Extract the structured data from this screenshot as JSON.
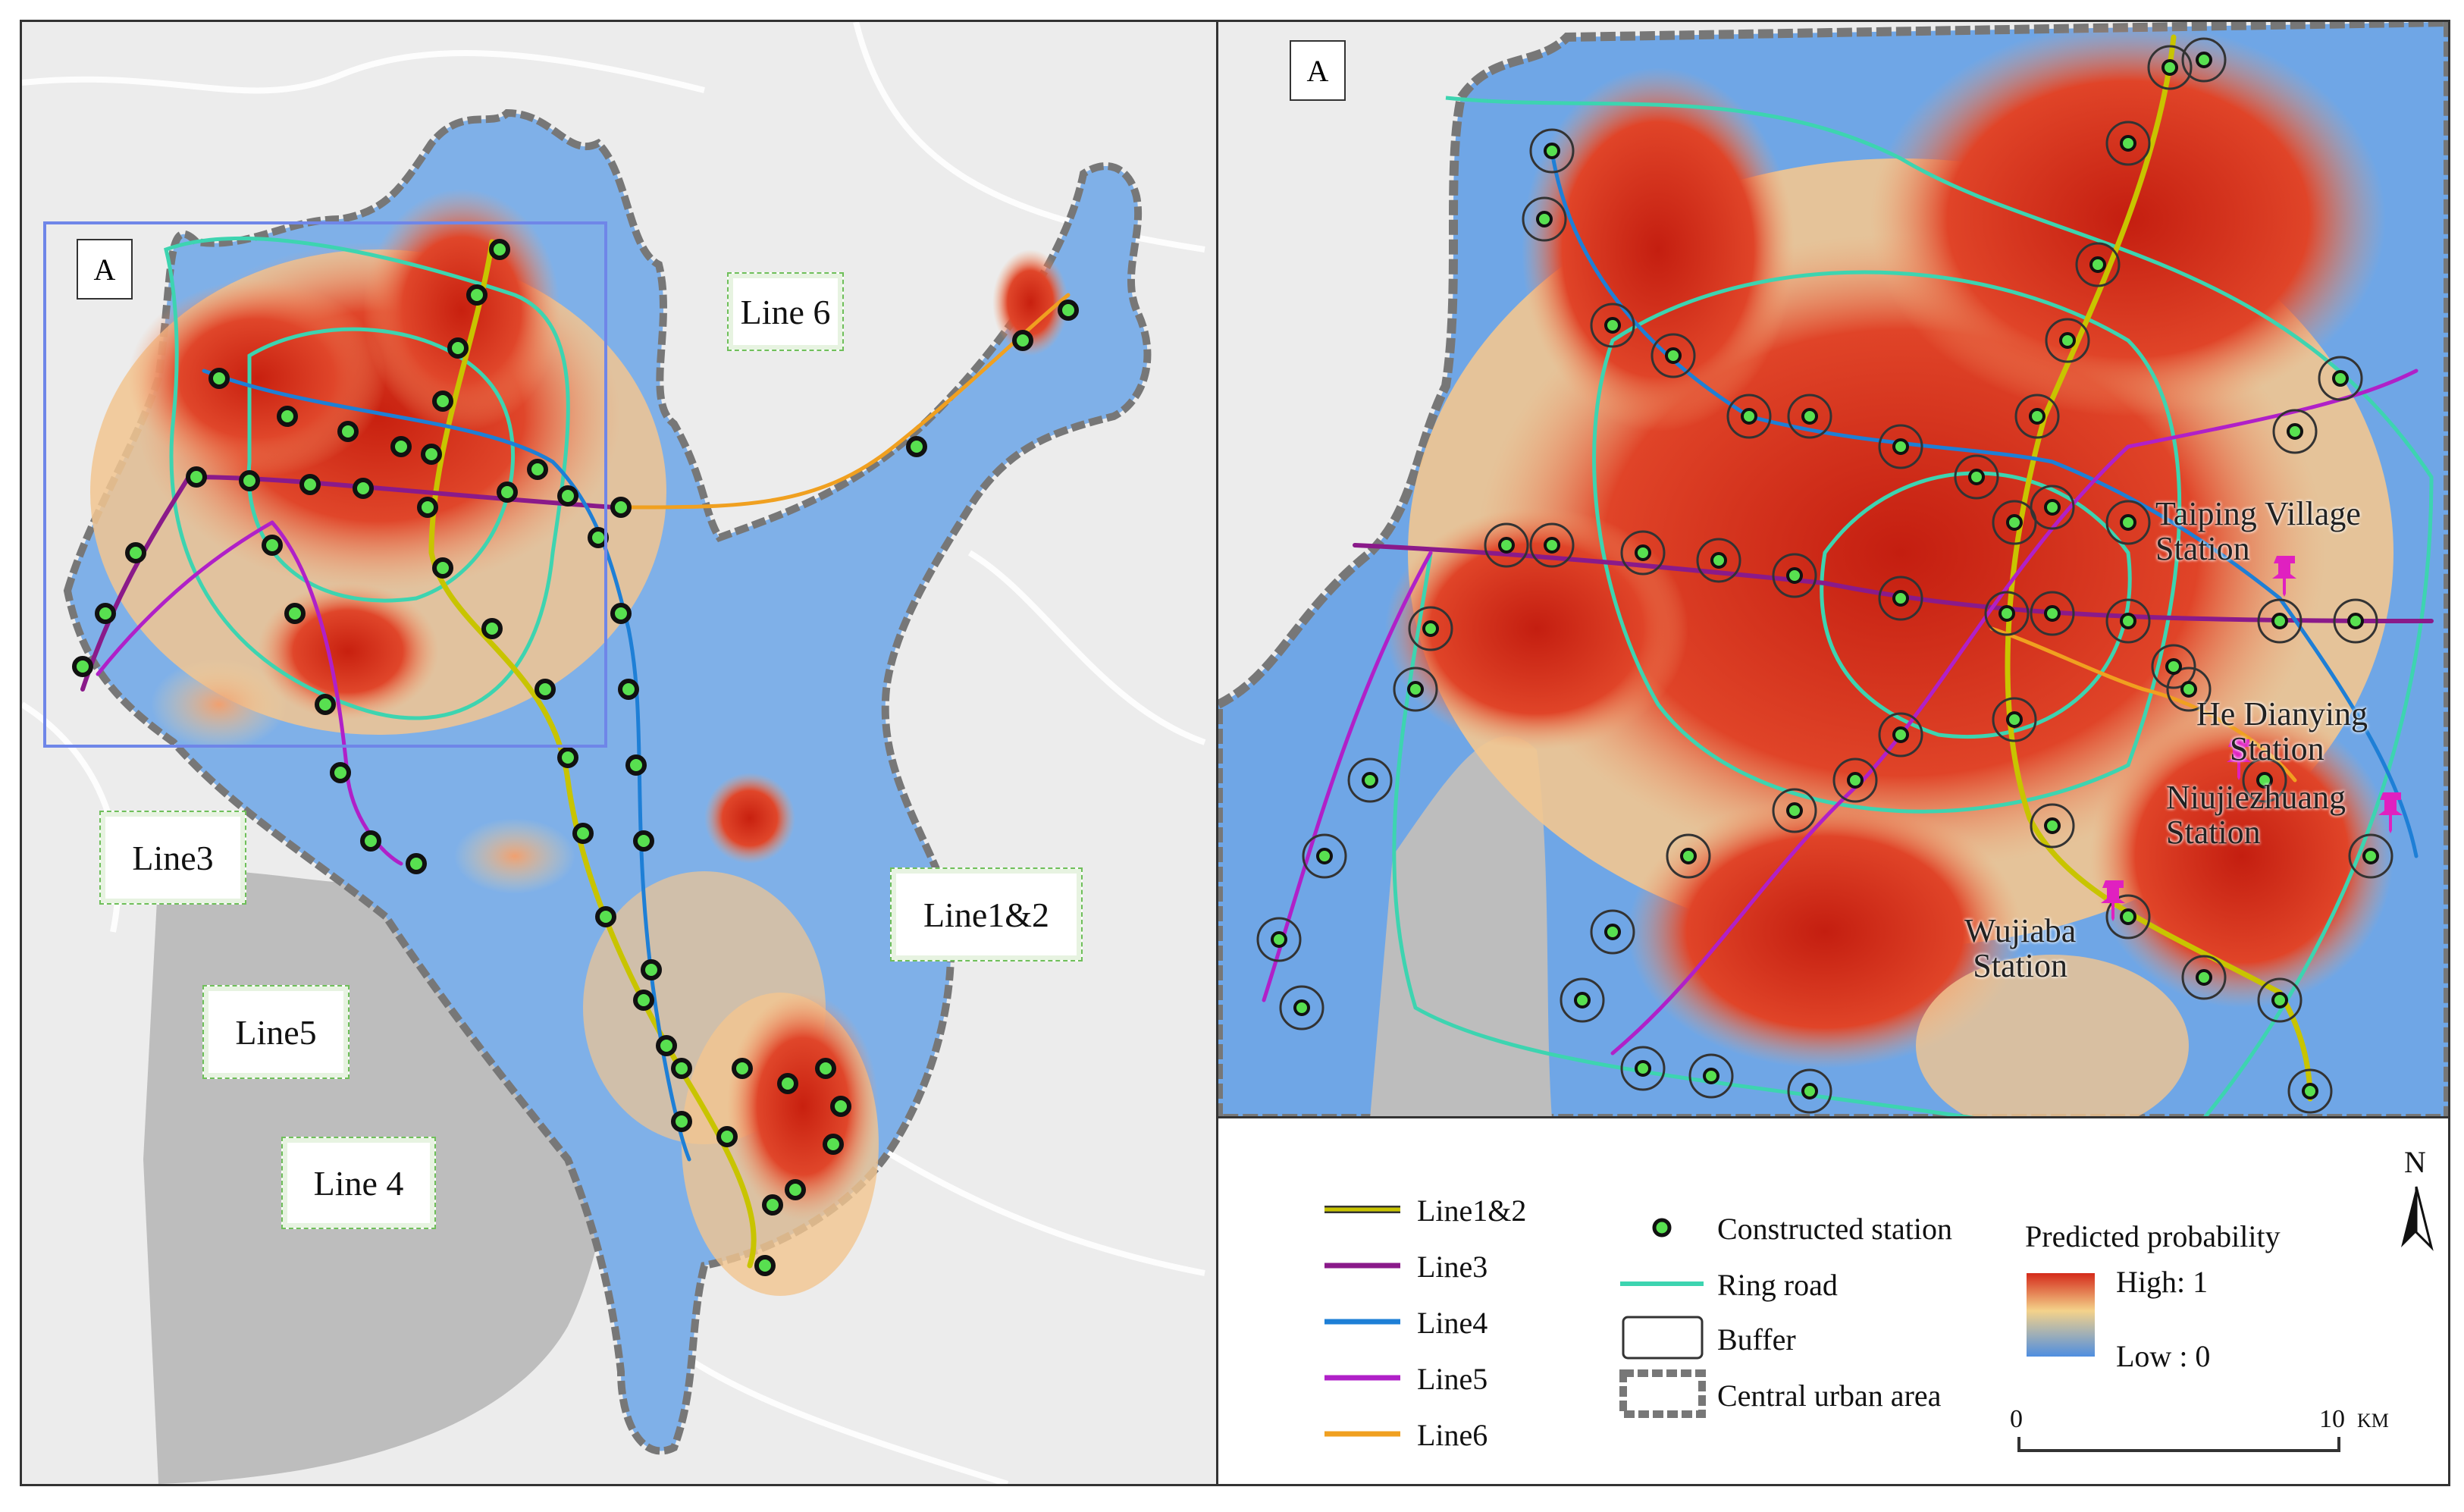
{
  "left_map": {
    "inset_box_label": "A",
    "callouts": {
      "line6": "Line 6",
      "line3": "Line3",
      "line5": "Line5",
      "line12": "Line1&2",
      "line4": "Line 4"
    }
  },
  "inset_map": {
    "label": "A",
    "stations": {
      "taiping": "Taiping Village\nStation",
      "hedianying": "He Dianying\n    Station",
      "niujiezhuang": "Niujiezhuang\nStation",
      "wujiaba": "Wujiaba\nStation"
    }
  },
  "legend": {
    "lines": [
      {
        "label": "Line1&2",
        "color": "#c8c400"
      },
      {
        "label": "Line3",
        "color": "#8a1a8a"
      },
      {
        "label": "Line4",
        "color": "#1e7fd6"
      },
      {
        "label": "Line5",
        "color": "#b020c8"
      },
      {
        "label": "Line6",
        "color": "#f0a020"
      }
    ],
    "constructed_station": "Constructed station",
    "ring_road": "Ring road",
    "buffer": "Buffer",
    "central_area": "Central urban area",
    "probability_title": "Predicted probability",
    "high": "High: 1",
    "low": "Low : 0",
    "scale_start": "0",
    "scale_end": "10",
    "scale_unit": "KM",
    "north": "N",
    "colors": {
      "high": "#d42a1a",
      "mid": "#f4d28a",
      "low": "#4f8ee0",
      "ring": "#3dd4b0"
    }
  }
}
